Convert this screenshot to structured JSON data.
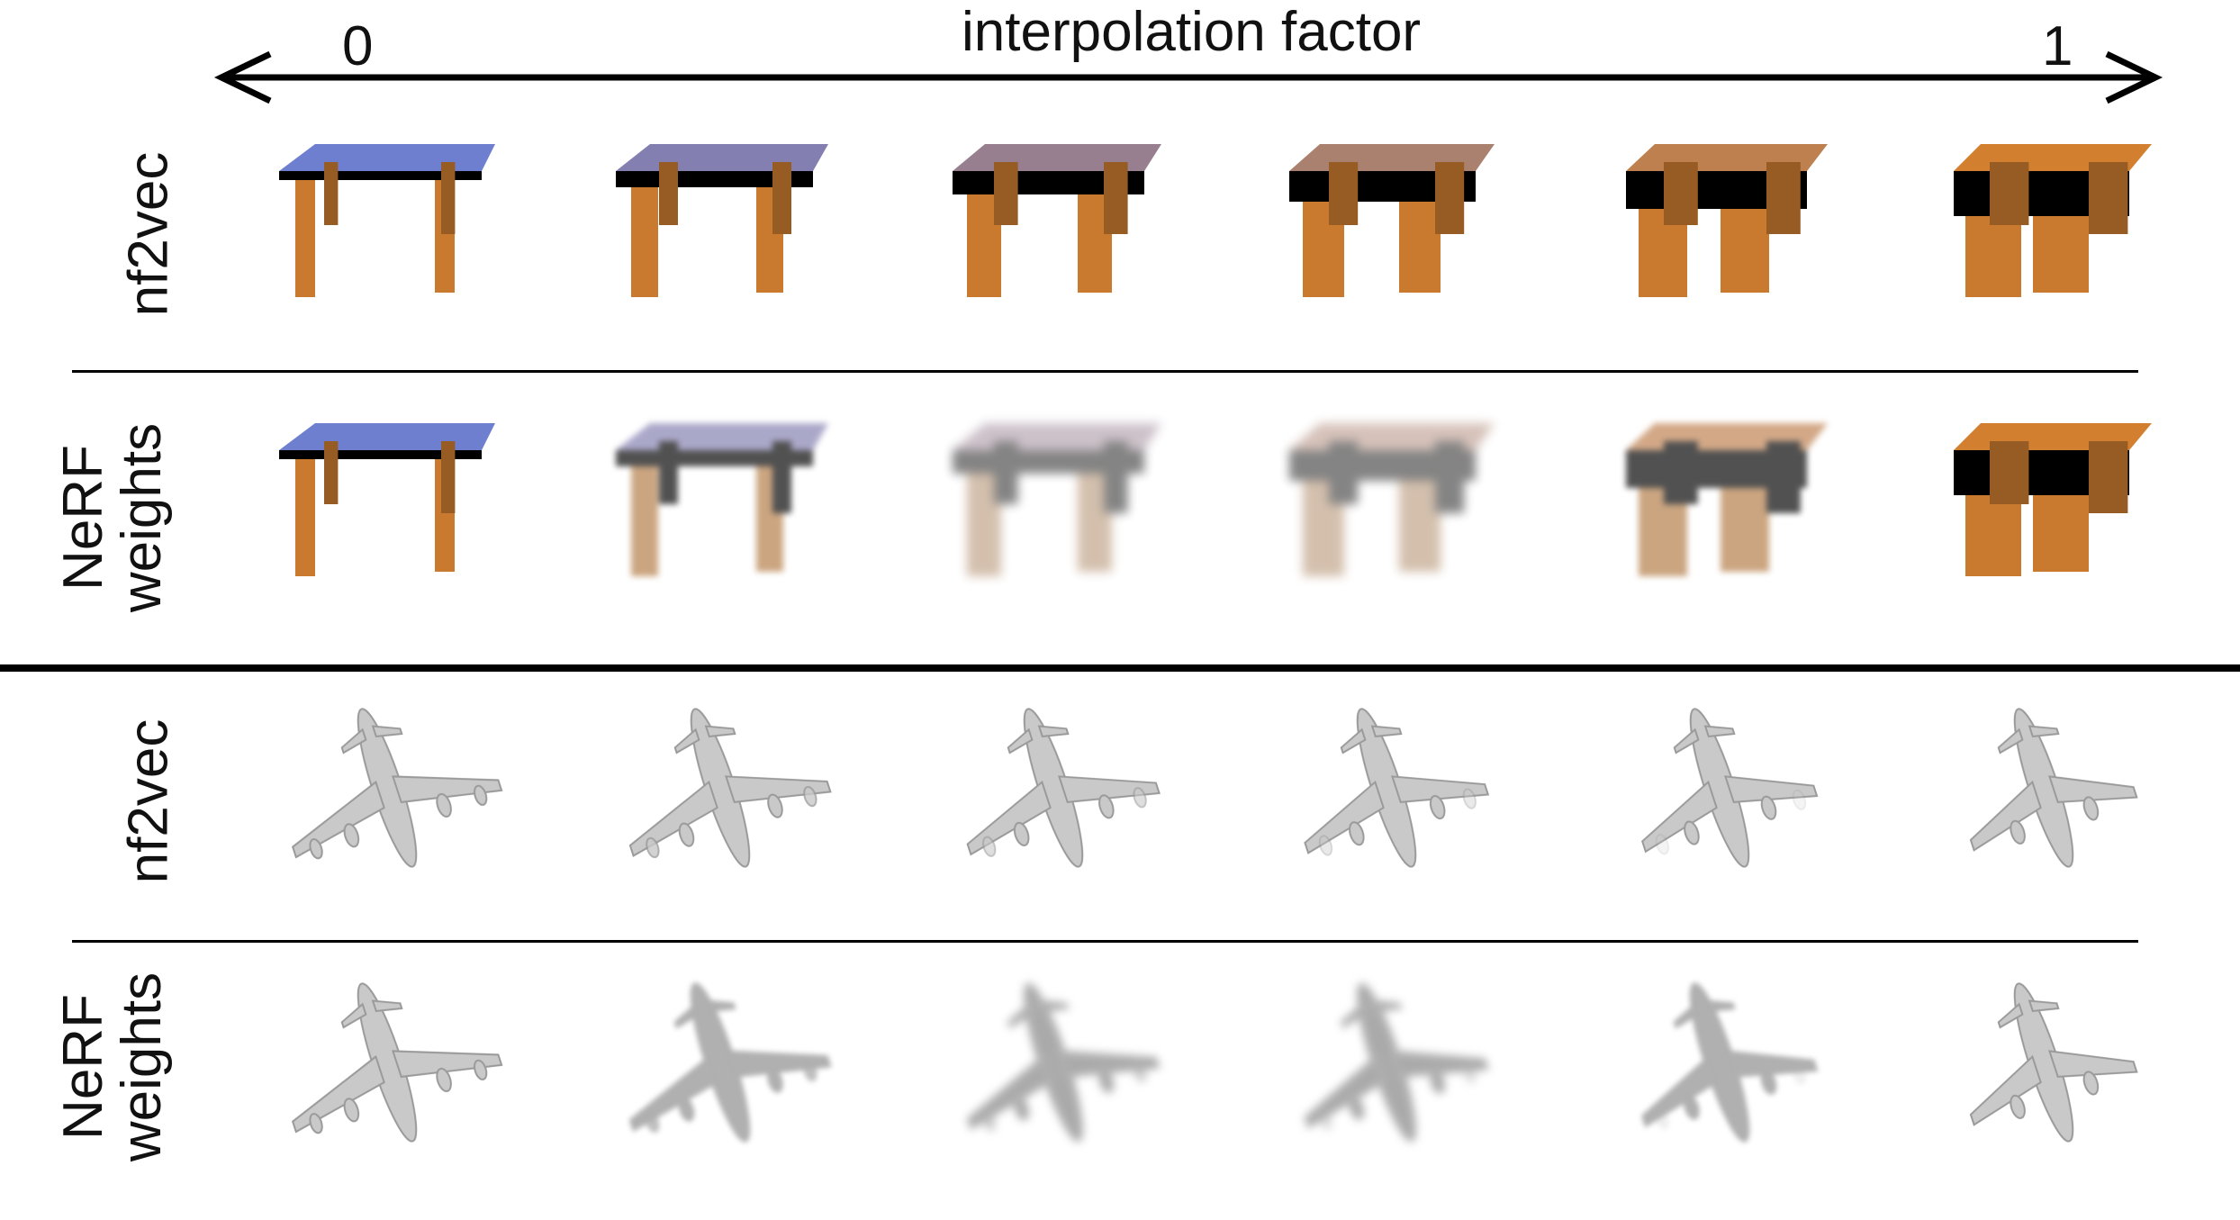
{
  "axis": {
    "title": "interpolation factor",
    "start_label": "0",
    "end_label": "1"
  },
  "sections": [
    {
      "object": "table",
      "rows": [
        {
          "label_lines": [
            "nf2vec"
          ],
          "kind": "nf2vec"
        },
        {
          "label_lines": [
            "NeRF",
            "weights"
          ],
          "kind": "nerf"
        }
      ]
    },
    {
      "object": "airplane",
      "rows": [
        {
          "label_lines": [
            "nf2vec"
          ],
          "kind": "nf2vec"
        },
        {
          "label_lines": [
            "NeRF",
            "weights"
          ],
          "kind": "nerf"
        }
      ]
    }
  ],
  "steps": [
    0,
    0.2,
    0.4,
    0.6,
    0.8,
    1
  ],
  "colors": {
    "table_top_start": "#6f7fd0",
    "table_top_end": "#d2802f",
    "table_leg": "#c97a2e",
    "plane_body": "#c9c9c9",
    "blur_gray": "#7d7d7d",
    "line": "#000000"
  }
}
